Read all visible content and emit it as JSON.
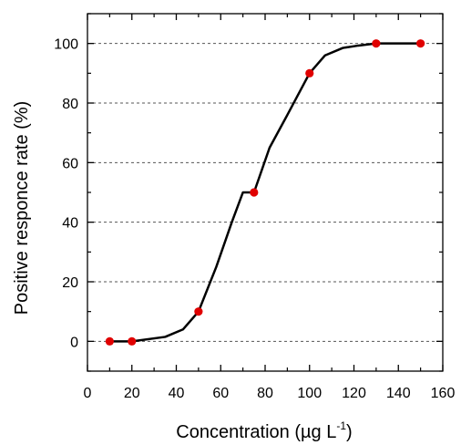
{
  "chart_data": {
    "type": "line",
    "xlabel": "Concentration (µg L",
    "xlabel_sup": "-1",
    "xlabel_suffix": ")",
    "ylabel": "Positive responce rate (%)",
    "xlim": [
      0,
      160
    ],
    "ylim": [
      -10,
      110
    ],
    "xticks": [
      0,
      20,
      40,
      60,
      80,
      100,
      120,
      140,
      160
    ],
    "yticks": [
      0,
      20,
      40,
      60,
      80,
      100
    ],
    "x_tick_labels": [
      "0",
      "20",
      "40",
      "60",
      "80",
      "100",
      "120",
      "140",
      "160"
    ],
    "y_tick_labels": [
      "0",
      "20",
      "40",
      "60",
      "80",
      "100"
    ],
    "horizontal_grid": "dashed",
    "line_color": "#000000",
    "marker_color": "#e00000",
    "curve": {
      "x": [
        10,
        20,
        35,
        43,
        50,
        58,
        65,
        70,
        75,
        82,
        90,
        100,
        107,
        115,
        122,
        130,
        150
      ],
      "y": [
        0,
        0,
        1.5,
        4,
        10,
        25,
        40,
        50,
        50,
        65,
        76,
        90,
        96,
        98.5,
        99.3,
        100,
        100
      ]
    },
    "series": [
      {
        "x": [
          10,
          20,
          50,
          75,
          100,
          130,
          150
        ],
        "y": [
          0,
          0,
          10,
          50,
          90,
          100,
          100
        ]
      }
    ]
  }
}
